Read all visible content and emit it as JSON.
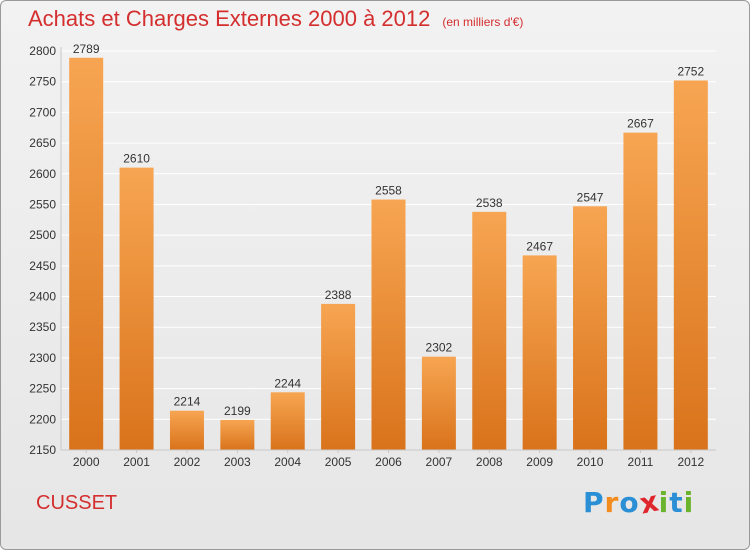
{
  "title": "Achats et Charges Externes 2000 à 2012",
  "subtitle": "(en milliers d'€)",
  "town": "CUSSET",
  "logo": {
    "letters": [
      "P",
      "r",
      "o",
      "x",
      "i",
      "t",
      "i"
    ],
    "colors": [
      "#2b8fd6",
      "#f28c1e",
      "#2b8fd6",
      "#e0262d",
      "#6ab42d",
      "#2b8fd6",
      "#6ab42d"
    ]
  },
  "colors": {
    "bar_top": "#f7a552",
    "bar_bottom": "#d9731b",
    "title": "#d42e2e",
    "grid": "#ffffff",
    "axis_text": "#333333"
  },
  "chart_data": {
    "type": "bar",
    "title": "Achats et Charges Externes 2000 à 2012",
    "subtitle": "(en milliers d'€)",
    "categories": [
      "2000",
      "2001",
      "2002",
      "2003",
      "2004",
      "2005",
      "2006",
      "2007",
      "2008",
      "2009",
      "2010",
      "2011",
      "2012"
    ],
    "values": [
      2789,
      2610,
      2214,
      2199,
      2244,
      2388,
      2558,
      2302,
      2538,
      2467,
      2547,
      2667,
      2752
    ],
    "ylim": [
      2150,
      2800
    ],
    "yticks": [
      2150,
      2200,
      2250,
      2300,
      2350,
      2400,
      2450,
      2500,
      2550,
      2600,
      2650,
      2700,
      2750,
      2800
    ],
    "grid": true,
    "data_labels": true,
    "legend": "none"
  }
}
